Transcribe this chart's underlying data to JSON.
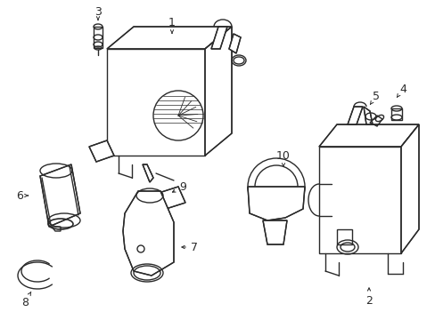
{
  "bg_color": "#ffffff",
  "line_color": "#2a2a2a",
  "lw": 1.0,
  "label_fs": 9,
  "figsize": [
    4.89,
    3.6
  ],
  "dpi": 100
}
